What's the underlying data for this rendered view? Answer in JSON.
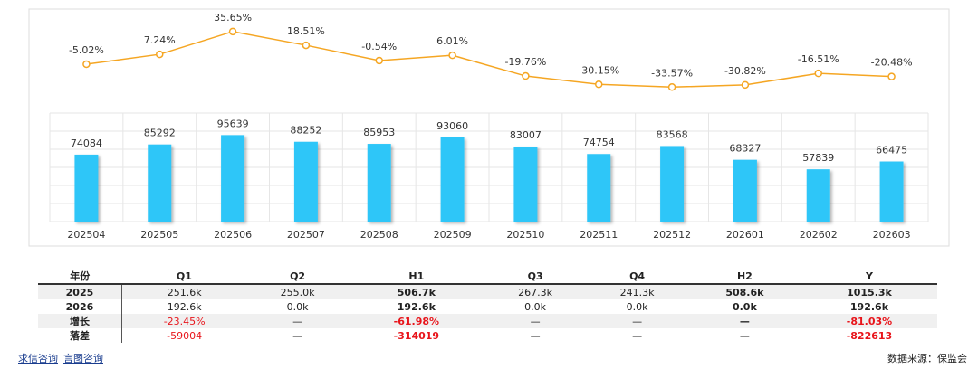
{
  "chart_data": [
    {
      "type": "line",
      "values": [
        -5.02,
        7.24,
        35.65,
        18.51,
        -0.54,
        6.01,
        -19.76,
        -30.15,
        -33.57,
        -30.82,
        -16.51,
        -20.48
      ],
      "value_labels": [
        "-5.02%",
        "7.24%",
        "35.65%",
        "18.51%",
        "-0.54%",
        "6.01%",
        "-19.76%",
        "-30.15%",
        "-33.57%",
        "-30.82%",
        "-16.51%",
        "-20.48%"
      ],
      "color": "#f5a623",
      "negative_color": "#e8151b",
      "ylim": [
        -40,
        40
      ]
    },
    {
      "type": "bar",
      "categories": [
        "202504",
        "202505",
        "202506",
        "202507",
        "202508",
        "202509",
        "202510",
        "202511",
        "202512",
        "202601",
        "202602",
        "202603"
      ],
      "values": [
        74084,
        85292,
        95639,
        88252,
        85953,
        93060,
        83007,
        74754,
        83568,
        68327,
        57839,
        66475
      ],
      "color": "#2fc6f8",
      "ylim": [
        0,
        120000
      ],
      "yticks": [
        0,
        20000,
        40000,
        60000,
        80000,
        100000,
        120000
      ],
      "grid": true
    }
  ],
  "table": {
    "header": [
      "年份",
      "Q1",
      "Q2",
      "H1",
      "Q3",
      "Q4",
      "H2",
      "Y"
    ],
    "rows": [
      [
        "2025",
        "251.6k",
        "255.0k",
        "506.7k",
        "267.3k",
        "241.3k",
        "508.6k",
        "1015.3k"
      ],
      [
        "2026",
        "192.6k",
        "0.0k",
        "192.6k",
        "0.0k",
        "0.0k",
        "0.0k",
        "192.6k"
      ],
      [
        "增长",
        "-23.45%",
        "—",
        "-61.98%",
        "—",
        "—",
        "—",
        "-81.03%"
      ],
      [
        "落差",
        "-59004",
        "—",
        "-314019",
        "—",
        "—",
        "—",
        "-822613"
      ]
    ]
  },
  "footer": {
    "links": [
      "求信咨询",
      "言图咨询"
    ],
    "source": "数据来源：保监会"
  }
}
